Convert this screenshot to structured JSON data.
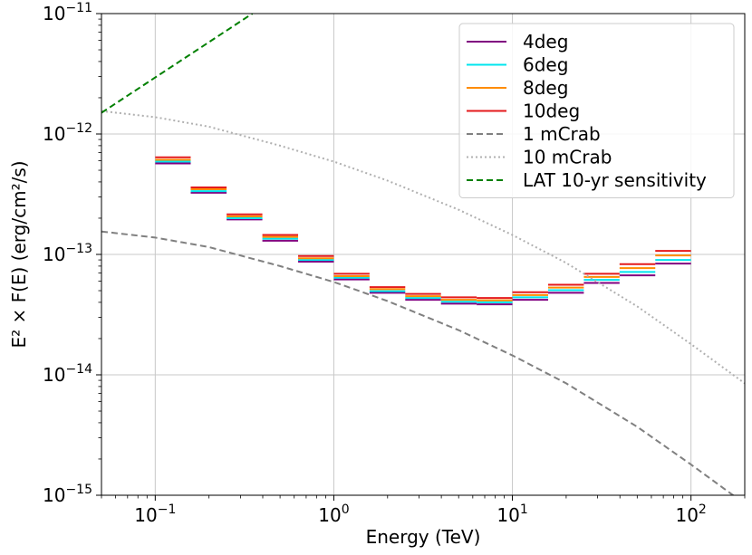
{
  "chart_data": {
    "type": "line",
    "title": "",
    "xlabel": "Energy (TeV)",
    "ylabel": "E² × F(E) (erg/cm²/s)",
    "xscale": "log",
    "yscale": "log",
    "xlim": [
      0.05,
      200
    ],
    "ylim": [
      1e-15,
      1e-11
    ],
    "grid": true,
    "legend_position": "top-right",
    "x_ticks": [
      {
        "value": 0.1,
        "base": "10",
        "exp": "−1"
      },
      {
        "value": 1,
        "base": "10",
        "exp": "0"
      },
      {
        "value": 10,
        "base": "10",
        "exp": "1"
      },
      {
        "value": 100,
        "base": "10",
        "exp": "2"
      }
    ],
    "y_ticks": [
      {
        "value": 1e-15,
        "base": "10",
        "exp": "−15"
      },
      {
        "value": 1e-14,
        "base": "10",
        "exp": "−14"
      },
      {
        "value": 1e-13,
        "base": "10",
        "exp": "−13"
      },
      {
        "value": 1e-12,
        "base": "10",
        "exp": "−12"
      },
      {
        "value": 1e-11,
        "base": "10",
        "exp": "−11"
      }
    ],
    "bins": [
      [
        0.1,
        0.158
      ],
      [
        0.158,
        0.251
      ],
      [
        0.251,
        0.398
      ],
      [
        0.398,
        0.631
      ],
      [
        0.631,
        1.0
      ],
      [
        1.0,
        1.585
      ],
      [
        1.585,
        2.512
      ],
      [
        2.512,
        3.981
      ],
      [
        3.981,
        6.31
      ],
      [
        6.31,
        10.0
      ],
      [
        10.0,
        15.85
      ],
      [
        15.85,
        25.12
      ],
      [
        25.12,
        39.81
      ],
      [
        39.81,
        63.1
      ],
      [
        63.1,
        100.0
      ]
    ],
    "series": [
      {
        "name": "4deg",
        "color": "#800080",
        "style": "step",
        "values": [
          5.7e-13,
          3.25e-13,
          1.95e-13,
          1.3e-13,
          8.7e-14,
          6.2e-14,
          4.8e-14,
          4.2e-14,
          3.9e-14,
          3.85e-14,
          4.2e-14,
          4.8e-14,
          5.8e-14,
          6.7e-14,
          8.4e-14
        ]
      },
      {
        "name": "6deg",
        "color": "#00e5ee",
        "style": "step",
        "values": [
          5.9e-13,
          3.35e-13,
          2e-13,
          1.35e-13,
          9e-14,
          6.4e-14,
          4.95e-14,
          4.35e-14,
          4.05e-14,
          4e-14,
          4.4e-14,
          5.05e-14,
          6.15e-14,
          7.15e-14,
          9e-14
        ]
      },
      {
        "name": "8deg",
        "color": "#ff8c00",
        "style": "step",
        "values": [
          6.1e-13,
          3.48e-13,
          2.07e-13,
          1.4e-13,
          9.3e-14,
          6.6e-14,
          5.15e-14,
          4.5e-14,
          4.2e-14,
          4.15e-14,
          4.6e-14,
          5.3e-14,
          6.5e-14,
          7.7e-14,
          9.8e-14
        ]
      },
      {
        "name": "10deg",
        "color": "#e41a1c",
        "style": "step",
        "values": [
          6.4e-13,
          3.6e-13,
          2.15e-13,
          1.45e-13,
          9.7e-14,
          6.9e-14,
          5.35e-14,
          4.7e-14,
          4.4e-14,
          4.35e-14,
          4.85e-14,
          5.6e-14,
          6.9e-14,
          8.3e-14,
          1.07e-13
        ]
      },
      {
        "name": "1 mCrab",
        "color": "#808080",
        "style": "dashed",
        "x": [
          0.05,
          0.1,
          0.2,
          0.5,
          1,
          2,
          5,
          10,
          20,
          50,
          100,
          200
        ],
        "values": [
          1.55e-13,
          1.38e-13,
          1.15e-13,
          8e-14,
          5.9e-14,
          4.1e-14,
          2.35e-14,
          1.45e-14,
          8.5e-15,
          3.7e-15,
          1.8e-15,
          8.5e-16
        ]
      },
      {
        "name": "10 mCrab",
        "color": "#b0b0b0",
        "style": "dotted",
        "x": [
          0.05,
          0.1,
          0.2,
          0.5,
          1,
          2,
          5,
          10,
          20,
          50,
          100,
          200
        ],
        "values": [
          1.55e-12,
          1.38e-12,
          1.15e-12,
          8e-13,
          5.9e-13,
          4.1e-13,
          2.35e-13,
          1.45e-13,
          8.5e-14,
          3.7e-14,
          1.8e-14,
          8.5e-15
        ]
      },
      {
        "name": "LAT 10-yr sensitivity",
        "color": "#008000",
        "style": "dashed",
        "x": [
          0.05,
          0.35
        ],
        "values": [
          1.5e-12,
          1e-11
        ]
      }
    ]
  }
}
